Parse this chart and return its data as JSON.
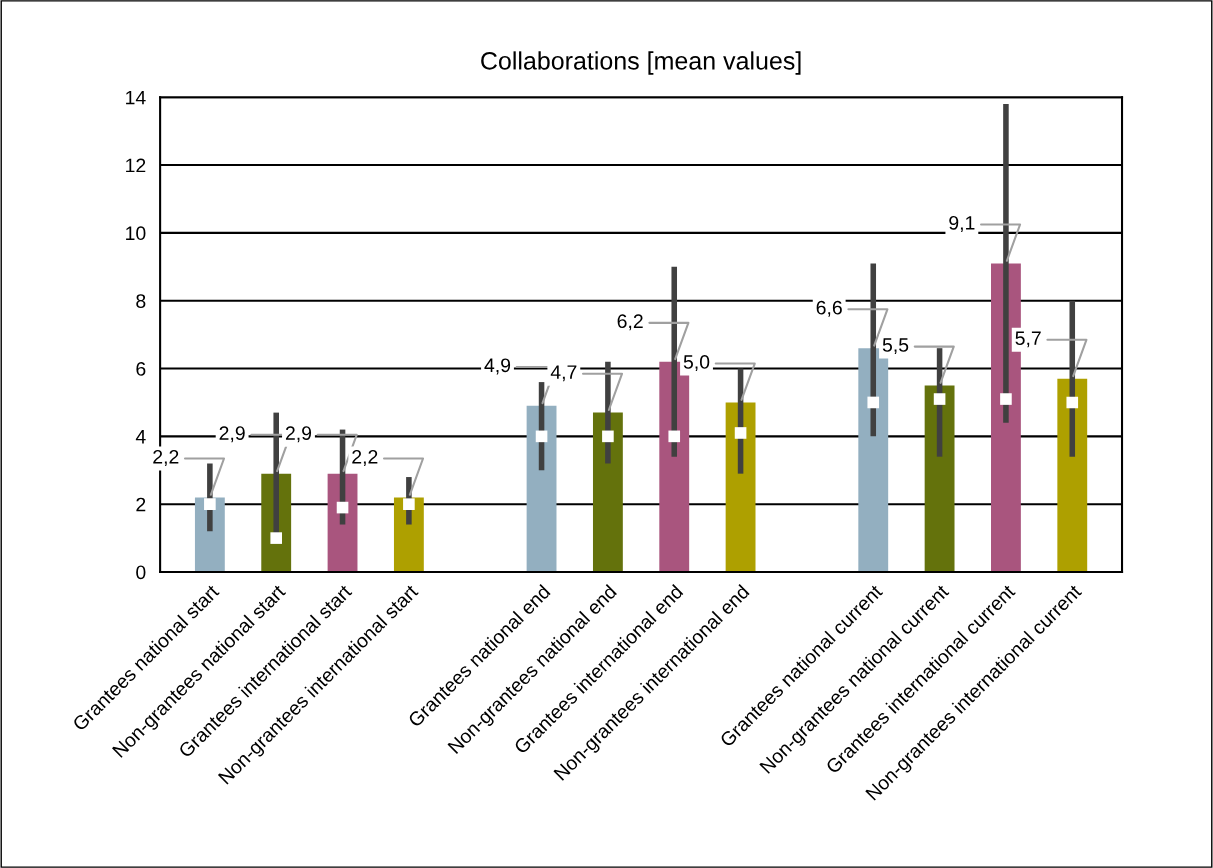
{
  "chart_data": {
    "type": "bar",
    "title": "Collaborations [mean values]",
    "categories": [
      "Grantees national start",
      "Non-grantees national start",
      "Grantees international start",
      "Non-grantees international start",
      null,
      "Grantees national end",
      "Non-grantees national end",
      "Grantees international end",
      "Non-grantees international end",
      null,
      "Grantees national current",
      "Non-grantees national current",
      "Grantees international current",
      "Non-grantees international current"
    ],
    "series": [
      {
        "values": [
          2.2,
          2.9,
          2.9,
          2.2,
          null,
          4.9,
          4.7,
          6.2,
          5.0,
          null,
          6.6,
          5.5,
          9.1,
          5.7
        ],
        "colors": [
          "#93afc0",
          "#64720c",
          "#a9557e",
          "#aea000",
          null,
          "#93afc0",
          "#64720c",
          "#a9557e",
          "#aea000",
          null,
          "#93afc0",
          "#64720c",
          "#a9557e",
          "#aea000"
        ],
        "value_labels": [
          "2,2",
          "2,9",
          "2,9",
          "2,2",
          null,
          "4,9",
          "4,7",
          "6,2",
          "5,0",
          null,
          "6,6",
          "5,5",
          "9,1",
          "5,7"
        ],
        "errors": [
          [
            1.2,
            3.2
          ],
          [
            1.1,
            4.7
          ],
          [
            1.4,
            4.2
          ],
          [
            1.4,
            2.8
          ],
          null,
          [
            3.0,
            5.6
          ],
          [
            3.2,
            6.2
          ],
          [
            3.4,
            9.0
          ],
          [
            2.9,
            6.0
          ],
          null,
          [
            4.0,
            9.1
          ],
          [
            3.4,
            6.6
          ],
          [
            4.4,
            13.8
          ],
          [
            3.4,
            8.0
          ]
        ]
      },
      {
        "type": "scatter",
        "color": "#ffffff",
        "marker": "square",
        "values": [
          2.0,
          1.0,
          1.9,
          2.0,
          null,
          4.0,
          4.0,
          4.0,
          4.1,
          null,
          5.0,
          5.1,
          5.1,
          5.0
        ]
      }
    ],
    "ylim": [
      0,
      14
    ],
    "yticks": [
      0,
      2,
      4,
      6,
      8,
      10,
      12,
      14
    ],
    "grid": "y"
  }
}
